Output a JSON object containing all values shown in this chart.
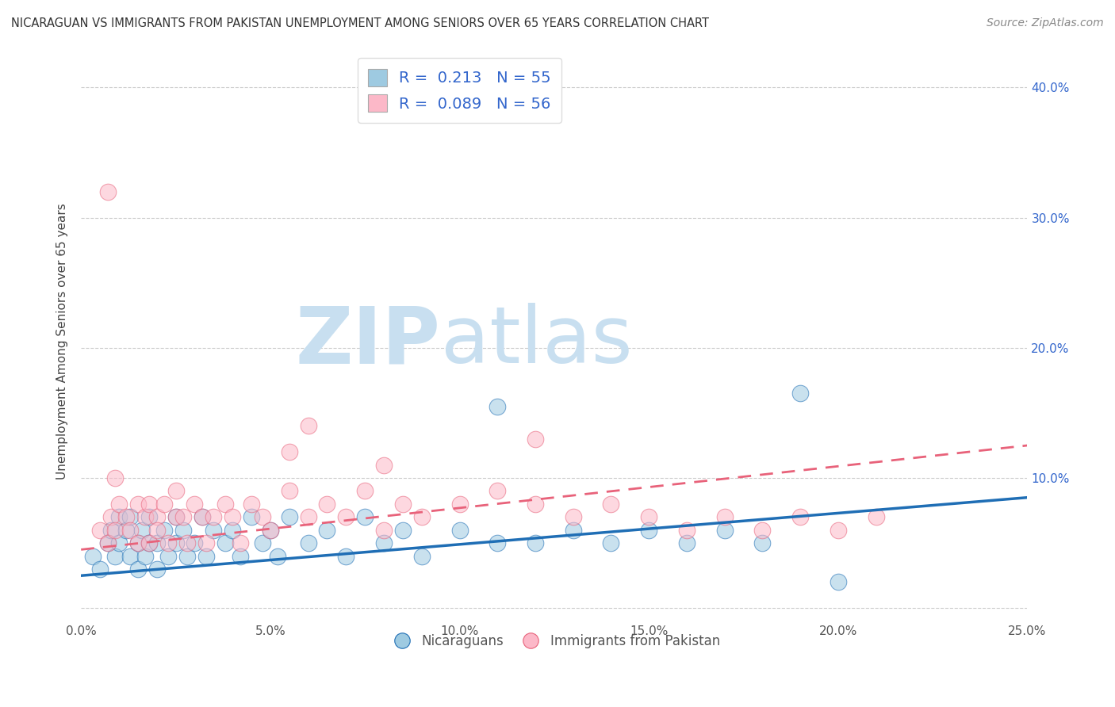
{
  "title": "NICARAGUAN VS IMMIGRANTS FROM PAKISTAN UNEMPLOYMENT AMONG SENIORS OVER 65 YEARS CORRELATION CHART",
  "source": "Source: ZipAtlas.com",
  "ylabel": "Unemployment Among Seniors over 65 years",
  "xlim": [
    0.0,
    0.25
  ],
  "ylim": [
    -0.01,
    0.42
  ],
  "blue_R": 0.213,
  "blue_N": 55,
  "pink_R": 0.089,
  "pink_N": 56,
  "blue_color": "#9ecae1",
  "pink_color": "#fcb8c8",
  "blue_trend_color": "#1f6eb5",
  "pink_trend_color": "#e8627a",
  "watermark_text_zip": "ZIP",
  "watermark_text_atlas": "atlas",
  "watermark_color_zip": "#c8dff0",
  "watermark_color_atlas": "#c8dff0",
  "legend_label_blue": "Nicaraguans",
  "legend_label_pink": "Immigrants from Pakistan",
  "blue_scatter_x": [
    0.003,
    0.005,
    0.007,
    0.008,
    0.009,
    0.01,
    0.01,
    0.012,
    0.013,
    0.013,
    0.015,
    0.015,
    0.016,
    0.017,
    0.018,
    0.018,
    0.02,
    0.02,
    0.022,
    0.023,
    0.025,
    0.025,
    0.027,
    0.028,
    0.03,
    0.032,
    0.033,
    0.035,
    0.038,
    0.04,
    0.042,
    0.045,
    0.048,
    0.05,
    0.052,
    0.055,
    0.06,
    0.065,
    0.07,
    0.075,
    0.08,
    0.085,
    0.09,
    0.1,
    0.11,
    0.12,
    0.13,
    0.14,
    0.15,
    0.16,
    0.17,
    0.18,
    0.2,
    0.11,
    0.19
  ],
  "blue_scatter_y": [
    0.04,
    0.03,
    0.05,
    0.06,
    0.04,
    0.05,
    0.07,
    0.06,
    0.04,
    0.07,
    0.05,
    0.03,
    0.06,
    0.04,
    0.05,
    0.07,
    0.05,
    0.03,
    0.06,
    0.04,
    0.05,
    0.07,
    0.06,
    0.04,
    0.05,
    0.07,
    0.04,
    0.06,
    0.05,
    0.06,
    0.04,
    0.07,
    0.05,
    0.06,
    0.04,
    0.07,
    0.05,
    0.06,
    0.04,
    0.07,
    0.05,
    0.06,
    0.04,
    0.06,
    0.155,
    0.05,
    0.06,
    0.05,
    0.06,
    0.05,
    0.06,
    0.05,
    0.02,
    0.05,
    0.165
  ],
  "pink_scatter_x": [
    0.005,
    0.007,
    0.008,
    0.009,
    0.01,
    0.012,
    0.013,
    0.015,
    0.015,
    0.017,
    0.018,
    0.018,
    0.02,
    0.02,
    0.022,
    0.023,
    0.025,
    0.025,
    0.027,
    0.028,
    0.03,
    0.032,
    0.033,
    0.035,
    0.038,
    0.04,
    0.042,
    0.045,
    0.048,
    0.05,
    0.055,
    0.06,
    0.065,
    0.07,
    0.075,
    0.08,
    0.085,
    0.09,
    0.1,
    0.11,
    0.12,
    0.13,
    0.14,
    0.15,
    0.16,
    0.17,
    0.18,
    0.19,
    0.2,
    0.21,
    0.055,
    0.12,
    0.06,
    0.08,
    0.007,
    0.009
  ],
  "pink_scatter_y": [
    0.06,
    0.05,
    0.07,
    0.06,
    0.08,
    0.07,
    0.06,
    0.08,
    0.05,
    0.07,
    0.08,
    0.05,
    0.07,
    0.06,
    0.08,
    0.05,
    0.07,
    0.09,
    0.07,
    0.05,
    0.08,
    0.07,
    0.05,
    0.07,
    0.08,
    0.07,
    0.05,
    0.08,
    0.07,
    0.06,
    0.09,
    0.07,
    0.08,
    0.07,
    0.09,
    0.06,
    0.08,
    0.07,
    0.08,
    0.09,
    0.08,
    0.07,
    0.08,
    0.07,
    0.06,
    0.07,
    0.06,
    0.07,
    0.06,
    0.07,
    0.12,
    0.13,
    0.14,
    0.11,
    0.32,
    0.1
  ],
  "blue_trend_x0": 0.0,
  "blue_trend_x1": 0.25,
  "blue_trend_y0": 0.025,
  "blue_trend_y1": 0.085,
  "pink_trend_x0": 0.0,
  "pink_trend_x1": 0.25,
  "pink_trend_y0": 0.045,
  "pink_trend_y1": 0.125
}
